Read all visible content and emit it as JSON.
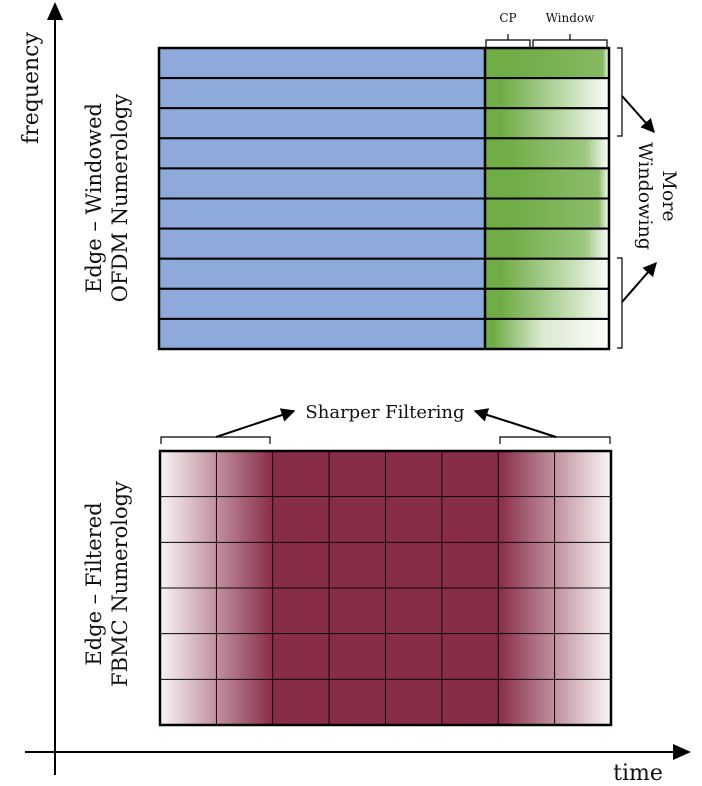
{
  "axes": {
    "y_label": "frequency",
    "x_label": "time"
  },
  "ofdm": {
    "label_line1": "Edge – Windowed",
    "label_line2": "OFDM Numerology",
    "cp_label": "CP",
    "window_label": "Window",
    "more_label_line1": "More",
    "more_label_line2": "Windowing",
    "row_count": 10,
    "body_color": "#8eaadb",
    "edge_color": "#70ad47",
    "window_fade": [
      1.0,
      0.55,
      0.55,
      0.8,
      0.95,
      0.95,
      0.8,
      0.55,
      0.55,
      0.3
    ]
  },
  "fbmc": {
    "label_line1": "Edge – Filtered",
    "label_line2": "FBMC Numerology",
    "filter_label": "Sharper Filtering",
    "row_count": 6,
    "col_count": 8,
    "color": "#882d48"
  }
}
